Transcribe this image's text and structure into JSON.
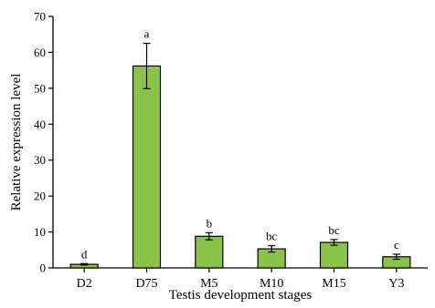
{
  "chart_data": {
    "type": "bar",
    "xlabel": "Testis development stages",
    "ylabel": "Relative expression level",
    "ylim": [
      0,
      70
    ],
    "yticks": [
      0,
      10,
      20,
      30,
      40,
      50,
      60,
      70
    ],
    "categories": [
      "D2",
      "D75",
      "M5",
      "M10",
      "M15",
      "Y3"
    ],
    "values": [
      1.0,
      56.2,
      8.8,
      5.3,
      7.1,
      3.1
    ],
    "errors": [
      0.2,
      6.3,
      1.0,
      0.9,
      0.8,
      0.7
    ],
    "significance_letters": [
      "d",
      "a",
      "b",
      "bc",
      "bc",
      "c"
    ],
    "bar_color": "#8bc34a",
    "bar_edge_color": "#000000",
    "grid": false,
    "legend": "none"
  }
}
